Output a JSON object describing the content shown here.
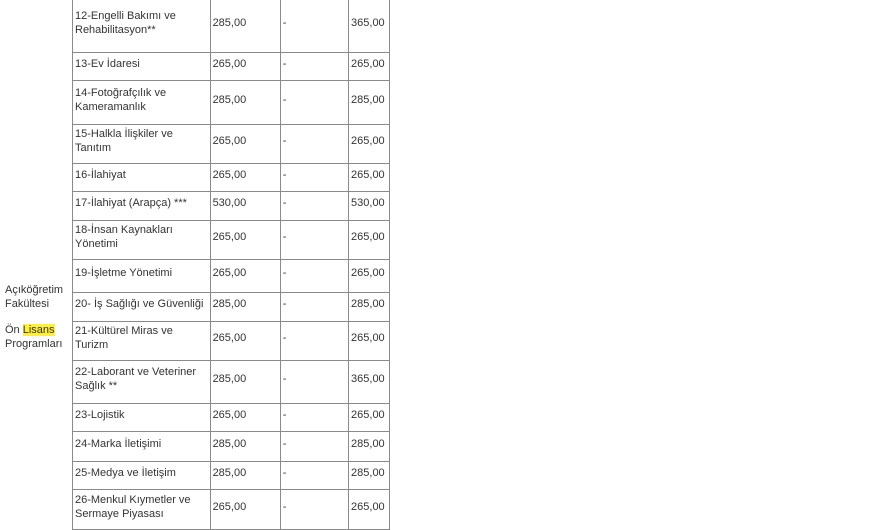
{
  "faculty": {
    "line1": "Açıköğretim Fakültesi",
    "line2_prefix": "Ön ",
    "line2_highlight": "Lisans",
    "line2_suffix": "Programları"
  },
  "rows": [
    {
      "program": "12-Engelli Bakımı ve Rehabilitasyon**",
      "fee": "285,00",
      "extra": "-",
      "total": "365,00"
    },
    {
      "program": "13-Ev İdaresi",
      "fee": "265,00",
      "extra": "-",
      "total": "265,00"
    },
    {
      "program": "14-Fotoğrafçılık ve Kameramanlık",
      "fee": "285,00",
      "extra": "-",
      "total": "285,00"
    },
    {
      "program": "15-Halkla İlişkiler ve Tanıtım",
      "fee": "265,00",
      "extra": "-",
      "total": "265,00"
    },
    {
      "program": "16-İlahiyat",
      "fee": "265,00",
      "extra": "-",
      "total": "265,00"
    },
    {
      "program": "17-İlahiyat (Arapça) ***",
      "fee": "530,00",
      "extra": "-",
      "total": "530,00"
    },
    {
      "program": "18-İnsan Kaynakları Yönetimi",
      "fee": "265,00",
      "extra": "-",
      "total": "265,00"
    },
    {
      "program": "19-İşletme Yönetimi",
      "fee": "265,00",
      "extra": "-",
      "total": "265,00"
    },
    {
      "program": "20- İş Sağlığı ve Güvenliği",
      "fee": "285,00",
      "extra": "-",
      "total": "285,00"
    },
    {
      "program": "21-Kültürel Miras ve Turizm",
      "fee": "265,00",
      "extra": "-",
      "total": "265,00"
    },
    {
      "program": "22-Laborant ve Veteriner Sağlık **",
      "fee": "285,00",
      "extra": "-",
      "total": "365,00"
    },
    {
      "program": "23-Lojistik",
      "fee": "265,00",
      "extra": "-",
      "total": "265,00"
    },
    {
      "program": "24-Marka İletişimi",
      "fee": "285,00",
      "extra": "-",
      "total": "285,00"
    },
    {
      "program": "25-Medya ve İletişim",
      "fee": "285,00",
      "extra": "-",
      "total": "285,00"
    },
    {
      "program": "26-Menkul Kıymetler ve Sermaye Piyasası",
      "fee": "265,00",
      "extra": "-",
      "total": "265,00"
    }
  ]
}
